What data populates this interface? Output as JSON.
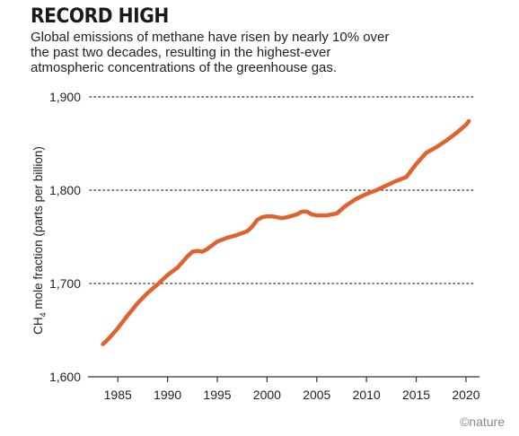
{
  "title": "RECORD HIGH",
  "subtitle": "Global emissions of methane have risen by nearly 10% over the past two decades, resulting in the highest-ever atmospheric concentrations of the greenhouse gas.",
  "credit": "©nature",
  "colors": {
    "line": "#e0622e",
    "text": "#222222",
    "grid": "#555555",
    "axis": "#333333"
  },
  "chart_data": {
    "type": "line",
    "title": "RECORD HIGH",
    "ylabel_prefix": "CH",
    "ylabel_sub": "4",
    "ylabel_suffix": " mole fraction (parts per billion)",
    "xlabel": "",
    "xlim": [
      1982,
      2021
    ],
    "ylim": [
      1600,
      1900
    ],
    "yticks": [
      1600,
      1700,
      1800,
      1900
    ],
    "ytick_labels": [
      "1,600",
      "1,700",
      "1,800",
      "1,900"
    ],
    "xticks": [
      1985,
      1990,
      1995,
      2000,
      2005,
      2010,
      2015,
      2020
    ],
    "xtick_labels": [
      "1985",
      "1990",
      "1995",
      "2000",
      "2005",
      "2010",
      "2015",
      "2020"
    ],
    "grid": "horizontal dotted",
    "series": [
      {
        "x": [
          1983.5,
          1984,
          1985,
          1986,
          1987,
          1988,
          1989,
          1990,
          1991,
          1992,
          1992.5,
          1993,
          1993.5,
          1994,
          1995,
          1996,
          1997,
          1998,
          1998.5,
          1999,
          1999.5,
          2000,
          2000.5,
          2001,
          2001.5,
          2002,
          2003,
          2003.5,
          2004,
          2004.5,
          2005,
          2006,
          2007,
          2008,
          2009,
          2010,
          2011,
          2012,
          2013,
          2014,
          2015,
          2016,
          2017,
          2018,
          2019,
          2020,
          2020.3
        ],
        "y": [
          1635,
          1640,
          1652,
          1666,
          1679,
          1690,
          1699,
          1709,
          1717,
          1729,
          1734,
          1735,
          1734,
          1737,
          1745,
          1749,
          1752,
          1756,
          1761,
          1768,
          1771,
          1772,
          1772,
          1771,
          1770,
          1771,
          1774,
          1777,
          1777,
          1774,
          1773,
          1773,
          1775,
          1784,
          1791,
          1796,
          1800,
          1805,
          1810,
          1814,
          1828,
          1840,
          1846,
          1853,
          1861,
          1870,
          1874
        ]
      }
    ]
  }
}
